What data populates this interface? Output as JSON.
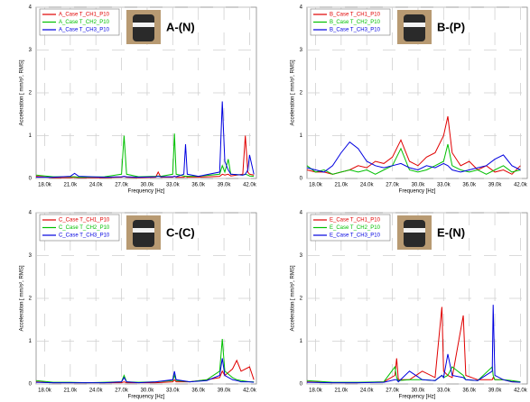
{
  "chart_data": [
    {
      "type": "line",
      "title": "A-(N)",
      "x_label": "Frequency [Hz]",
      "y_label": "Acceleration [ mm/s², RMS]",
      "grid": true,
      "xlim": [
        17000,
        42800
      ],
      "ylim": [
        0,
        4
      ],
      "xticks": [
        {
          "value": 18000,
          "label": "18.0k"
        },
        {
          "value": 21000,
          "label": "21.0k"
        },
        {
          "value": 24000,
          "label": "24.0k"
        },
        {
          "value": 27000,
          "label": "27.0k"
        },
        {
          "value": 30000,
          "label": "30.0k"
        },
        {
          "value": 33000,
          "label": "33.0k"
        },
        {
          "value": 36000,
          "label": "36.0k"
        },
        {
          "value": 39000,
          "label": "39.0k"
        },
        {
          "value": 42000,
          "label": "42.0k"
        }
      ],
      "yticks": [
        0,
        1,
        2,
        3,
        4
      ],
      "x": [
        17000,
        19000,
        21000,
        21500,
        22000,
        25000,
        27000,
        27300,
        27600,
        29000,
        31000,
        31300,
        31600,
        33000,
        33200,
        33400,
        34300,
        34500,
        34700,
        36000,
        38500,
        38800,
        39100,
        39500,
        39800,
        41200,
        41500,
        41800,
        42000,
        42500
      ],
      "series": [
        {
          "name": "A_Case T_CH1_P10",
          "color": "#e00000",
          "values": [
            0.05,
            0.02,
            0.02,
            0.03,
            0.02,
            0.02,
            0.03,
            0.05,
            0.03,
            0.02,
            0.03,
            0.15,
            0.03,
            0.03,
            0.05,
            0.03,
            0.03,
            0.05,
            0.03,
            0.03,
            0.05,
            0.1,
            0.08,
            0.1,
            0.06,
            0.1,
            1.0,
            0.15,
            0.1,
            0.08
          ]
        },
        {
          "name": "A_Case T_CH2_P10",
          "color": "#00c000",
          "values": [
            0.08,
            0.04,
            0.04,
            0.04,
            0.03,
            0.04,
            0.1,
            1.0,
            0.1,
            0.04,
            0.05,
            0.06,
            0.05,
            0.1,
            1.05,
            0.1,
            0.06,
            0.05,
            0.05,
            0.05,
            0.1,
            0.3,
            0.15,
            0.45,
            0.1,
            0.08,
            0.1,
            0.08,
            0.06,
            0.05
          ]
        },
        {
          "name": "A_Case T_CH3_P10",
          "color": "#0000e0",
          "values": [
            0.03,
            0.03,
            0.05,
            0.12,
            0.05,
            0.03,
            0.04,
            0.05,
            0.04,
            0.03,
            0.04,
            0.05,
            0.04,
            0.04,
            0.05,
            0.04,
            0.1,
            0.8,
            0.1,
            0.05,
            0.15,
            1.8,
            0.4,
            0.2,
            0.1,
            0.08,
            0.1,
            0.2,
            0.55,
            0.1
          ]
        }
      ]
    },
    {
      "type": "line",
      "title": "B-(P)",
      "x_label": "Frequency [Hz]",
      "y_label": "Acceleration [ mm/s², RMS]",
      "grid": true,
      "xlim": [
        17000,
        42800
      ],
      "ylim": [
        0,
        4
      ],
      "xticks": [
        {
          "value": 18000,
          "label": "18.0k"
        },
        {
          "value": 21000,
          "label": "21.0k"
        },
        {
          "value": 24000,
          "label": "24.0k"
        },
        {
          "value": 27000,
          "label": "27.0k"
        },
        {
          "value": 30000,
          "label": "30.0k"
        },
        {
          "value": 33000,
          "label": "33.0k"
        },
        {
          "value": 36000,
          "label": "36.0k"
        },
        {
          "value": 39000,
          "label": "39.0k"
        },
        {
          "value": 42000,
          "label": "42.0k"
        }
      ],
      "yticks": [
        0,
        1,
        2,
        3,
        4
      ],
      "x": [
        17000,
        18000,
        19000,
        20000,
        21000,
        22000,
        23000,
        24000,
        25000,
        26000,
        27000,
        28000,
        29000,
        30000,
        31000,
        32000,
        33000,
        33500,
        34000,
        35000,
        36000,
        37000,
        38000,
        39000,
        40000,
        41000,
        42000
      ],
      "series": [
        {
          "name": "B_Case T_CH1_P10",
          "color": "#e00000",
          "values": [
            0.2,
            0.15,
            0.15,
            0.1,
            0.15,
            0.2,
            0.3,
            0.25,
            0.4,
            0.35,
            0.5,
            0.9,
            0.4,
            0.3,
            0.5,
            0.6,
            1.0,
            1.45,
            0.6,
            0.3,
            0.4,
            0.2,
            0.3,
            0.15,
            0.2,
            0.1,
            0.3
          ]
        },
        {
          "name": "B_Case T_CH2_P10",
          "color": "#00c000",
          "values": [
            0.3,
            0.15,
            0.2,
            0.1,
            0.15,
            0.2,
            0.15,
            0.2,
            0.1,
            0.2,
            0.3,
            0.7,
            0.2,
            0.15,
            0.2,
            0.3,
            0.4,
            0.8,
            0.3,
            0.2,
            0.15,
            0.2,
            0.1,
            0.2,
            0.3,
            0.15,
            0.2
          ]
        },
        {
          "name": "B_Case T_CH3_P10",
          "color": "#0000e0",
          "values": [
            0.25,
            0.2,
            0.15,
            0.3,
            0.6,
            0.85,
            0.7,
            0.4,
            0.3,
            0.25,
            0.3,
            0.35,
            0.25,
            0.2,
            0.3,
            0.25,
            0.35,
            0.3,
            0.2,
            0.15,
            0.2,
            0.25,
            0.3,
            0.45,
            0.55,
            0.3,
            0.2
          ]
        }
      ]
    },
    {
      "type": "line",
      "title": "C-(C)",
      "x_label": "Frequency [Hz]",
      "y_label": "Acceleration [ mm/s², RMS]",
      "grid": true,
      "xlim": [
        17000,
        42800
      ],
      "ylim": [
        0,
        4
      ],
      "xticks": [
        {
          "value": 18000,
          "label": "18.0k"
        },
        {
          "value": 21000,
          "label": "21.0k"
        },
        {
          "value": 24000,
          "label": "24.0k"
        },
        {
          "value": 27000,
          "label": "27.0k"
        },
        {
          "value": 30000,
          "label": "30.0k"
        },
        {
          "value": 33000,
          "label": "33.0k"
        },
        {
          "value": 36000,
          "label": "36.0k"
        },
        {
          "value": 39000,
          "label": "39.0k"
        },
        {
          "value": 42000,
          "label": "42.0k"
        }
      ],
      "yticks": [
        0,
        1,
        2,
        3,
        4
      ],
      "x": [
        17000,
        19000,
        21000,
        23000,
        25000,
        27000,
        27300,
        27600,
        29000,
        31000,
        33000,
        33200,
        33400,
        35000,
        37000,
        38500,
        38800,
        39100,
        40000,
        40500,
        41000,
        42000,
        42500
      ],
      "series": [
        {
          "name": "C_Case T_CH1_P10",
          "color": "#e00000",
          "values": [
            0.05,
            0.03,
            0.03,
            0.03,
            0.03,
            0.03,
            0.05,
            0.03,
            0.03,
            0.03,
            0.05,
            0.1,
            0.05,
            0.05,
            0.1,
            0.15,
            0.3,
            0.2,
            0.35,
            0.55,
            0.3,
            0.4,
            0.1
          ]
        },
        {
          "name": "C_Case T_CH2_P10",
          "color": "#00c000",
          "values": [
            0.08,
            0.04,
            0.04,
            0.03,
            0.04,
            0.05,
            0.2,
            0.05,
            0.04,
            0.05,
            0.08,
            0.2,
            0.08,
            0.05,
            0.1,
            0.3,
            1.05,
            0.3,
            0.15,
            0.1,
            0.08,
            0.05,
            0.05
          ]
        },
        {
          "name": "C_Case T_CH3_P10",
          "color": "#0000e0",
          "values": [
            0.04,
            0.03,
            0.03,
            0.03,
            0.03,
            0.05,
            0.15,
            0.05,
            0.03,
            0.05,
            0.1,
            0.3,
            0.1,
            0.05,
            0.08,
            0.2,
            0.6,
            0.2,
            0.1,
            0.08,
            0.05,
            0.05,
            0.04
          ]
        }
      ]
    },
    {
      "type": "line",
      "title": "E-(N)",
      "x_label": "Frequency [Hz]",
      "y_label": "Acceleration [ mm/s², RMS]",
      "grid": true,
      "xlim": [
        17000,
        42800
      ],
      "ylim": [
        0,
        4
      ],
      "xticks": [
        {
          "value": 18000,
          "label": "18.0k"
        },
        {
          "value": 21000,
          "label": "21.0k"
        },
        {
          "value": 24000,
          "label": "24.0k"
        },
        {
          "value": 27000,
          "label": "27.0k"
        },
        {
          "value": 30000,
          "label": "30.0k"
        },
        {
          "value": 33000,
          "label": "33.0k"
        },
        {
          "value": 36000,
          "label": "36.0k"
        },
        {
          "value": 39000,
          "label": "39.0k"
        },
        {
          "value": 42000,
          "label": "42.0k"
        }
      ],
      "yticks": [
        0,
        1,
        2,
        3,
        4
      ],
      "x": [
        17000,
        20000,
        23000,
        26000,
        27300,
        27500,
        27700,
        29000,
        30500,
        32000,
        32800,
        33000,
        33500,
        34000,
        35300,
        35600,
        37000,
        38700,
        38800,
        39000,
        40000,
        41000,
        42000
      ],
      "series": [
        {
          "name": "E_Case T_CH1_P10",
          "color": "#e00000",
          "values": [
            0.05,
            0.03,
            0.03,
            0.05,
            0.2,
            0.6,
            0.1,
            0.1,
            0.3,
            0.15,
            1.8,
            0.3,
            0.2,
            0.15,
            1.6,
            0.2,
            0.1,
            0.1,
            0.15,
            0.1,
            0.1,
            0.05,
            0.05
          ]
        },
        {
          "name": "E_Case T_CH2_P10",
          "color": "#00c000",
          "values": [
            0.08,
            0.04,
            0.04,
            0.05,
            0.4,
            0.15,
            0.08,
            0.1,
            0.1,
            0.08,
            0.2,
            0.15,
            0.2,
            0.4,
            0.2,
            0.1,
            0.08,
            0.4,
            0.2,
            0.1,
            0.1,
            0.08,
            0.05
          ]
        },
        {
          "name": "E_Case T_CH3_P10",
          "color": "#0000e0",
          "values": [
            0.04,
            0.03,
            0.03,
            0.04,
            0.1,
            0.1,
            0.05,
            0.3,
            0.1,
            0.08,
            0.2,
            0.15,
            0.7,
            0.2,
            0.15,
            0.1,
            0.08,
            0.3,
            1.85,
            0.2,
            0.1,
            0.05,
            0.04
          ]
        }
      ]
    }
  ]
}
